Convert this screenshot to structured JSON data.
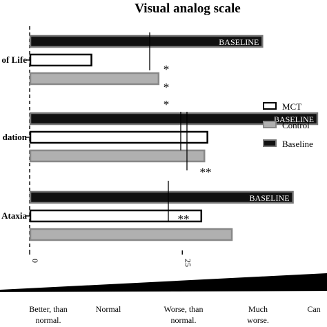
{
  "chart_data": {
    "type": "bar",
    "orientation": "horizontal",
    "title": "Visual analog scale",
    "categories": [
      "Quality of Life",
      "Coordination",
      "Ataxia"
    ],
    "visible_category_labels": [
      "of Life",
      "dation",
      "Ataxia"
    ],
    "series": [
      {
        "name": "Baseline",
        "values": [
          38,
          47,
          43
        ],
        "color": "#111111",
        "edge": "#777777",
        "bar_label": "BASELINE"
      },
      {
        "name": "MCT",
        "values": [
          10,
          29,
          28
        ],
        "color": "#ffffff",
        "edge": "#000000"
      },
      {
        "name": "Control",
        "values": [
          21,
          28.5,
          33
        ],
        "color": "#b0b0b0",
        "edge": "#888888"
      }
    ],
    "xlim": [
      0,
      100
    ],
    "x_ticks": [
      "0",
      "25",
      "50",
      "75"
    ],
    "legend": {
      "placement": "right",
      "entries": [
        "MCT",
        "Control",
        "Baseline"
      ]
    },
    "significance": [
      {
        "category": "Quality of Life",
        "marks": [
          "*",
          "*",
          "*"
        ]
      },
      {
        "category": "Coordination",
        "marks": [
          "**"
        ]
      },
      {
        "category": "Ataxia",
        "marks": [
          "**"
        ]
      }
    ],
    "scale_labels": [
      {
        "line1": "Better, than",
        "line2": "normal."
      },
      {
        "line1": "Normal",
        "line2": ""
      },
      {
        "line1": "Worse, than",
        "line2": "normal."
      },
      {
        "line1": "Much",
        "line2": "worse."
      },
      {
        "line1": "Can",
        "line2": ""
      }
    ]
  }
}
